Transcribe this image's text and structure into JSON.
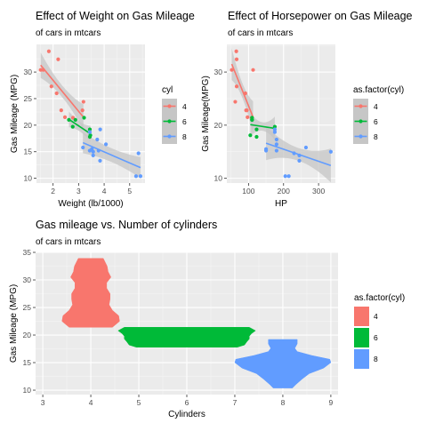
{
  "colors": {
    "panel": "#ebebeb",
    "grid_major": "#ffffff",
    "grid_minor": "#f5f5f5",
    "ribbon": "#c6c6c6",
    "text": "#000000",
    "axis_text": "#4d4d4d",
    "cyl4": "#f8766d",
    "cyl6": "#00ba38",
    "cyl8": "#619cff"
  },
  "chart_data": [
    {
      "type": "scatter",
      "title": "Effect of Weight on Gas Mileage",
      "subtitle": "of cars in mtcars",
      "xlabel": "Weight (lb/1000)",
      "ylabel": "Gas Mileage (MPG)",
      "xlim": [
        1.35,
        5.6
      ],
      "ylim": [
        9.1,
        35.2
      ],
      "x_ticks": [
        2,
        3,
        4,
        5
      ],
      "x_tick_labels": [
        "2",
        "3",
        "4",
        "5"
      ],
      "y_ticks": [
        10,
        15,
        20,
        25,
        30
      ],
      "y_tick_labels": [
        "10",
        "15",
        "20",
        "25",
        "30"
      ],
      "legend": {
        "title": "cyl",
        "position": "right",
        "labels": [
          "4",
          "6",
          "8"
        ]
      },
      "series": [
        {
          "name": "4",
          "points": [
            [
              2.32,
              22.8
            ],
            [
              3.19,
              24.4
            ],
            [
              3.15,
              22.8
            ],
            [
              2.2,
              32.4
            ],
            [
              1.615,
              30.4
            ],
            [
              1.835,
              33.9
            ],
            [
              2.465,
              21.5
            ],
            [
              1.935,
              27.3
            ],
            [
              2.14,
              26.0
            ],
            [
              1.513,
              30.4
            ],
            [
              2.78,
              21.4
            ]
          ],
          "fit": [
            [
              1.513,
              31.3
            ],
            [
              3.19,
              21.5
            ]
          ],
          "band": [
            1.1,
            2.4
          ]
        },
        {
          "name": "6",
          "points": [
            [
              2.62,
              21.0
            ],
            [
              2.875,
              21.0
            ],
            [
              3.215,
              21.4
            ],
            [
              3.46,
              18.1
            ],
            [
              3.44,
              19.2
            ],
            [
              3.44,
              17.8
            ],
            [
              2.77,
              19.7
            ]
          ],
          "fit": [
            [
              2.62,
              21.1
            ],
            [
              3.46,
              18.4
            ]
          ],
          "band": [
            0.9,
            1.5
          ]
        },
        {
          "name": "8",
          "points": [
            [
              3.44,
              18.7
            ],
            [
              3.57,
              14.3
            ],
            [
              4.07,
              16.4
            ],
            [
              3.73,
              17.3
            ],
            [
              3.78,
              15.2
            ],
            [
              5.25,
              10.4
            ],
            [
              5.424,
              10.4
            ],
            [
              5.345,
              14.7
            ],
            [
              3.52,
              15.5
            ],
            [
              3.435,
              15.2
            ],
            [
              3.84,
              13.3
            ],
            [
              3.845,
              19.2
            ],
            [
              3.17,
              15.8
            ],
            [
              3.57,
              15.0
            ]
          ],
          "fit": [
            [
              3.17,
              16.7
            ],
            [
              5.424,
              12.0
            ]
          ],
          "band": [
            1.3,
            2.0
          ]
        }
      ]
    },
    {
      "type": "scatter",
      "title": "Effect of Horsepower on Gas Mileage",
      "subtitle": "of cars in mtcars",
      "xlabel": "HP",
      "ylabel": "Gas Mileage(MPG)",
      "xlim": [
        38,
        348
      ],
      "ylim": [
        9.1,
        35.2
      ],
      "x_ticks": [
        100,
        200,
        300
      ],
      "x_tick_labels": [
        "100",
        "200",
        "300"
      ],
      "y_ticks": [
        10,
        20,
        30
      ],
      "y_tick_labels": [
        "10",
        "20",
        "30"
      ],
      "legend": {
        "title": "as.factor(cyl)",
        "position": "right",
        "labels": [
          "4",
          "6",
          "8"
        ]
      },
      "series": [
        {
          "name": "4",
          "points": [
            [
              93,
              22.8
            ],
            [
              62,
              24.4
            ],
            [
              95,
              22.8
            ],
            [
              66,
              32.4
            ],
            [
              52,
              30.4
            ],
            [
              65,
              33.9
            ],
            [
              97,
              21.5
            ],
            [
              66,
              27.3
            ],
            [
              91,
              26.0
            ],
            [
              113,
              30.4
            ],
            [
              109,
              21.4
            ]
          ],
          "fit": [
            [
              52,
              31.5
            ],
            [
              113,
              21.5
            ]
          ],
          "band": [
            1.4,
            3.0
          ]
        },
        {
          "name": "6",
          "points": [
            [
              110,
              21.0
            ],
            [
              110,
              21.0
            ],
            [
              110,
              21.4
            ],
            [
              105,
              18.1
            ],
            [
              123,
              19.2
            ],
            [
              123,
              17.8
            ],
            [
              175,
              19.7
            ]
          ],
          "fit": [
            [
              105,
              20.1
            ],
            [
              175,
              19.4
            ]
          ],
          "band": [
            0.8,
            2.2
          ]
        },
        {
          "name": "8",
          "points": [
            [
              175,
              18.7
            ],
            [
              245,
              14.3
            ],
            [
              180,
              16.4
            ],
            [
              180,
              17.3
            ],
            [
              180,
              15.2
            ],
            [
              205,
              10.4
            ],
            [
              215,
              10.4
            ],
            [
              230,
              14.7
            ],
            [
              150,
              15.5
            ],
            [
              150,
              15.2
            ],
            [
              245,
              13.3
            ],
            [
              175,
              19.2
            ],
            [
              264,
              15.8
            ],
            [
              335,
              15.0
            ]
          ],
          "fit": [
            [
              150,
              16.6
            ],
            [
              335,
              12.4
            ]
          ],
          "band": [
            1.2,
            3.2
          ]
        }
      ]
    },
    {
      "type": "violin",
      "title": "Gas mileage vs. Number of cylinders",
      "subtitle": "of cars in mtcars",
      "xlabel": "Cylinders",
      "ylabel": "Gas Mileage (MPG)",
      "xlim": [
        2.85,
        9.15
      ],
      "ylim": [
        9.2,
        35.0
      ],
      "x_ticks": [
        3,
        4,
        5,
        6,
        7,
        8,
        9
      ],
      "x_tick_labels": [
        "3",
        "4",
        "5",
        "6",
        "7",
        "8",
        "9"
      ],
      "y_ticks": [
        10,
        15,
        20,
        25,
        30,
        35
      ],
      "y_tick_labels": [
        "10",
        "15",
        "20",
        "25",
        "30",
        "35"
      ],
      "legend": {
        "title": "as.factor(cyl)",
        "position": "right",
        "labels": [
          "4",
          "6",
          "8"
        ]
      },
      "series": [
        {
          "name": "4",
          "x": 4,
          "min": 21.4,
          "max": 33.9,
          "profile": [
            [
              21.4,
              0.45
            ],
            [
              22.5,
              0.6
            ],
            [
              23.5,
              0.58
            ],
            [
              24.5,
              0.45
            ],
            [
              25.5,
              0.38
            ],
            [
              26.5,
              0.4
            ],
            [
              27.5,
              0.4
            ],
            [
              28.5,
              0.33
            ],
            [
              29.5,
              0.33
            ],
            [
              30.5,
              0.42
            ],
            [
              31.5,
              0.36
            ],
            [
              32.5,
              0.34
            ],
            [
              33.9,
              0.26
            ]
          ]
        },
        {
          "name": "6",
          "x": 6,
          "min": 17.8,
          "max": 21.4,
          "profile": [
            [
              17.8,
              1.05
            ],
            [
              18.2,
              1.2
            ],
            [
              18.8,
              1.25
            ],
            [
              19.3,
              1.3
            ],
            [
              19.8,
              1.3
            ],
            [
              20.3,
              1.35
            ],
            [
              20.8,
              1.43
            ],
            [
              21.4,
              1.3
            ]
          ]
        },
        {
          "name": "8",
          "x": 8,
          "min": 10.4,
          "max": 19.2,
          "profile": [
            [
              10.4,
              0.2
            ],
            [
              11.0,
              0.27
            ],
            [
              12.0,
              0.4
            ],
            [
              13.0,
              0.55
            ],
            [
              14.0,
              0.85
            ],
            [
              15.0,
              1.0
            ],
            [
              15.6,
              0.98
            ],
            [
              16.3,
              0.6
            ],
            [
              17.0,
              0.3
            ],
            [
              17.6,
              0.25
            ],
            [
              18.4,
              0.3
            ],
            [
              19.2,
              0.3
            ]
          ]
        }
      ]
    }
  ]
}
